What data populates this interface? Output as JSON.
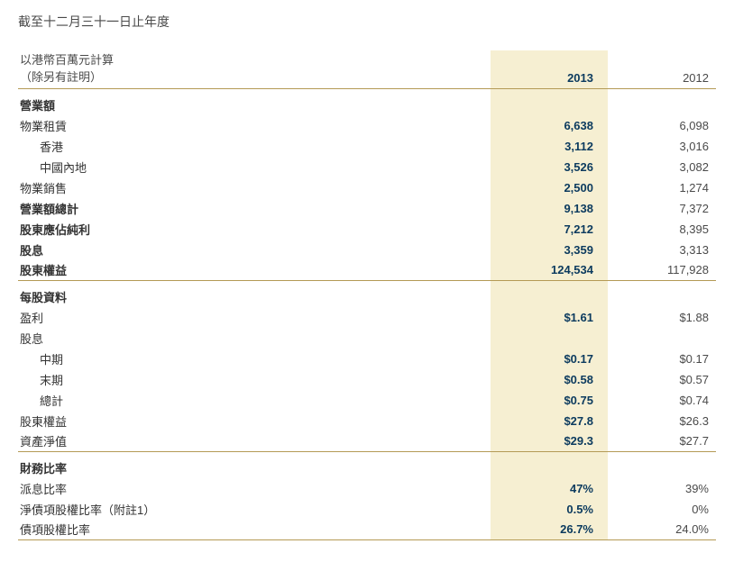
{
  "title": "截至十二月三十一日止年度",
  "unit_line1": "以港幣百萬元計算",
  "unit_line2": "（除另有註明）",
  "years": {
    "y2013": "2013",
    "y2012": "2012"
  },
  "colors": {
    "highlight_bg": "#f6efd2",
    "accent_text": "#0b3a5e",
    "body_text": "#4a4a4a",
    "divider": "#b49a55",
    "background": "#ffffff"
  },
  "sections": {
    "revenue": {
      "title": "營業額",
      "rows": {
        "property_leasing": {
          "label": "物業租賃",
          "y2013": "6,638",
          "y2012": "6,098"
        },
        "hk": {
          "label": "香港",
          "y2013": "3,112",
          "y2012": "3,016"
        },
        "mainland": {
          "label": "中國內地",
          "y2013": "3,526",
          "y2012": "3,082"
        },
        "property_sales": {
          "label": "物業銷售",
          "y2013": "2,500",
          "y2012": "1,274"
        },
        "total_revenue": {
          "label": "營業額總計",
          "y2013": "9,138",
          "y2012": "7,372"
        },
        "profit_to_shareholders": {
          "label": "股東應佔純利",
          "y2013": "7,212",
          "y2012": "8,395"
        },
        "dividend": {
          "label": "股息",
          "y2013": "3,359",
          "y2012": "3,313"
        },
        "equity": {
          "label": "股東權益",
          "y2013": "124,534",
          "y2012": "117,928"
        }
      }
    },
    "per_share": {
      "title": "每股資料",
      "rows": {
        "earnings": {
          "label": "盈利",
          "y2013": "$1.61",
          "y2012": "$1.88"
        },
        "dividends": {
          "label": "股息",
          "y2013": "",
          "y2012": ""
        },
        "interim": {
          "label": "中期",
          "y2013": "$0.17",
          "y2012": "$0.17"
        },
        "final": {
          "label": "末期",
          "y2013": "$0.58",
          "y2012": "$0.57"
        },
        "total": {
          "label": "總計",
          "y2013": "$0.75",
          "y2012": "$0.74"
        },
        "equity": {
          "label": "股東權益",
          "y2013": "$27.8",
          "y2012": "$26.3"
        },
        "nav": {
          "label": "資產淨值",
          "y2013": "$29.3",
          "y2012": "$27.7"
        }
      }
    },
    "ratios": {
      "title": "財務比率",
      "rows": {
        "payout": {
          "label": "派息比率",
          "y2013": "47%",
          "y2012": "39%"
        },
        "net_debt": {
          "label": "淨債項股權比率（附註1）",
          "y2013": "0.5%",
          "y2012": "0%"
        },
        "debt": {
          "label": "債項股權比率",
          "y2013": "26.7%",
          "y2012": "24.0%"
        }
      }
    }
  }
}
